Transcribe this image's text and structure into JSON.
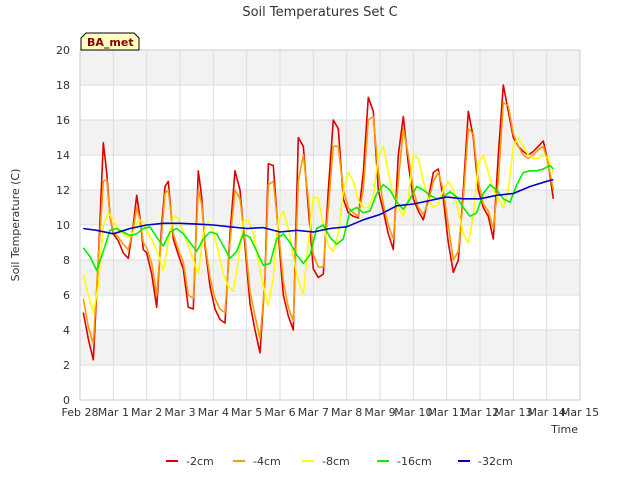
{
  "chart_data": {
    "type": "line",
    "title": "Soil Temperatures Set C",
    "xlabel": "Time",
    "ylabel": "Soil Temperature (C)",
    "ylim": [
      0,
      20
    ],
    "yticks": [
      0,
      2,
      4,
      6,
      8,
      10,
      12,
      14,
      16,
      18,
      20
    ],
    "xlim": [
      0,
      15
    ],
    "xtick_labels": [
      "Feb 28",
      "Mar 1",
      "Mar 2",
      "Mar 3",
      "Mar 4",
      "Mar 5",
      "Mar 6",
      "Mar 7",
      "Mar 8",
      "Mar 9",
      "Mar 10",
      "Mar 11",
      "Mar 12",
      "Mar 13",
      "Mar 14",
      "Mar 15"
    ],
    "grid": true,
    "legend_position": "bottom",
    "badge": "BA_met",
    "series": [
      {
        "name": "-2cm",
        "color": "#dd0000",
        "x": [
          0.1,
          0.25,
          0.4,
          0.55,
          0.7,
          0.8,
          0.9,
          1.0,
          1.15,
          1.3,
          1.45,
          1.6,
          1.7,
          1.8,
          1.9,
          2.0,
          2.15,
          2.3,
          2.45,
          2.55,
          2.65,
          2.8,
          2.95,
          3.1,
          3.25,
          3.4,
          3.55,
          3.65,
          3.75,
          3.9,
          4.05,
          4.2,
          4.35,
          4.5,
          4.65,
          4.8,
          4.95,
          5.1,
          5.25,
          5.4,
          5.55,
          5.65,
          5.8,
          5.95,
          6.1,
          6.25,
          6.4,
          6.55,
          6.7,
          6.85,
          7.0,
          7.15,
          7.3,
          7.45,
          7.6,
          7.75,
          7.9,
          8.05,
          8.2,
          8.35,
          8.5,
          8.65,
          8.8,
          8.95,
          9.1,
          9.25,
          9.4,
          9.55,
          9.7,
          9.85,
          10.0,
          10.15,
          10.3,
          10.45,
          10.6,
          10.75,
          10.9,
          11.05,
          11.2,
          11.35,
          11.5,
          11.65,
          11.8,
          11.95,
          12.1,
          12.25,
          12.4,
          12.55,
          12.7,
          12.85,
          13.0,
          13.15,
          13.3,
          13.45,
          13.6,
          13.75,
          13.9,
          14.05,
          14.2
        ],
        "y": [
          5.0,
          3.5,
          2.3,
          8.0,
          14.7,
          13.0,
          10.5,
          9.5,
          9.1,
          8.4,
          8.1,
          10.0,
          11.7,
          10.4,
          8.6,
          8.4,
          7.2,
          5.3,
          10.0,
          12.2,
          12.5,
          9.2,
          8.3,
          7.5,
          5.3,
          5.2,
          13.1,
          11.6,
          8.8,
          6.5,
          5.2,
          4.6,
          4.4,
          9.5,
          13.1,
          12.0,
          8.8,
          5.5,
          4.0,
          2.7,
          7.0,
          13.5,
          13.4,
          9.5,
          6.0,
          4.8,
          4.0,
          15.0,
          14.5,
          11.0,
          7.5,
          7.0,
          7.2,
          12.0,
          16.0,
          15.5,
          11.5,
          10.7,
          10.5,
          10.4,
          13.0,
          17.3,
          16.5,
          12.0,
          10.8,
          9.5,
          8.6,
          14.0,
          16.2,
          13.5,
          11.5,
          10.8,
          10.3,
          11.5,
          13.0,
          13.2,
          11.5,
          9.0,
          7.3,
          8.0,
          12.0,
          16.5,
          15.0,
          12.0,
          11.0,
          10.5,
          9.2,
          14.0,
          18.0,
          16.5,
          15.0,
          14.5,
          14.2,
          14.0,
          14.2,
          14.5,
          14.8,
          13.5,
          11.5
        ]
      },
      {
        "name": "-4cm",
        "color": "#ff9900",
        "x": [
          0.1,
          0.25,
          0.4,
          0.55,
          0.7,
          0.8,
          0.9,
          1.0,
          1.15,
          1.3,
          1.45,
          1.6,
          1.7,
          1.8,
          1.9,
          2.0,
          2.15,
          2.3,
          2.45,
          2.55,
          2.65,
          2.8,
          2.95,
          3.1,
          3.25,
          3.4,
          3.55,
          3.65,
          3.75,
          3.9,
          4.05,
          4.2,
          4.35,
          4.5,
          4.65,
          4.8,
          4.95,
          5.1,
          5.25,
          5.4,
          5.55,
          5.65,
          5.8,
          5.95,
          6.1,
          6.25,
          6.4,
          6.55,
          6.7,
          6.85,
          7.0,
          7.15,
          7.3,
          7.45,
          7.6,
          7.75,
          7.9,
          8.05,
          8.2,
          8.35,
          8.5,
          8.65,
          8.8,
          8.95,
          9.1,
          9.25,
          9.4,
          9.55,
          9.7,
          9.85,
          10.0,
          10.15,
          10.3,
          10.45,
          10.6,
          10.75,
          10.9,
          11.05,
          11.2,
          11.35,
          11.5,
          11.65,
          11.8,
          11.95,
          12.1,
          12.25,
          12.4,
          12.55,
          12.7,
          12.85,
          13.0,
          13.15,
          13.3,
          13.45,
          13.6,
          13.75,
          13.9,
          14.05,
          14.2
        ],
        "y": [
          5.8,
          4.2,
          3.2,
          8.0,
          12.5,
          12.6,
          10.5,
          9.6,
          9.3,
          8.9,
          8.6,
          9.8,
          11.0,
          10.3,
          9.0,
          8.7,
          7.8,
          6.0,
          9.5,
          11.8,
          12.0,
          9.5,
          8.6,
          7.9,
          6.0,
          5.8,
          12.0,
          11.2,
          9.0,
          7.0,
          5.8,
          5.2,
          5.0,
          9.0,
          12.0,
          11.5,
          9.2,
          6.2,
          4.8,
          3.5,
          6.8,
          12.3,
          12.5,
          9.8,
          6.8,
          5.3,
          4.5,
          12.5,
          14.0,
          11.5,
          8.3,
          7.6,
          7.6,
          11.0,
          14.5,
          14.5,
          12.0,
          11.0,
          10.7,
          10.5,
          12.0,
          16.0,
          16.2,
          13.0,
          11.2,
          10.0,
          9.2,
          12.5,
          15.5,
          14.0,
          12.0,
          11.0,
          10.6,
          11.3,
          12.5,
          13.0,
          12.0,
          10.0,
          8.0,
          8.5,
          11.5,
          15.5,
          15.2,
          12.5,
          11.2,
          10.8,
          9.8,
          12.5,
          17.0,
          16.8,
          15.2,
          14.5,
          14.0,
          13.8,
          14.0,
          14.3,
          14.5,
          13.5,
          12.0
        ]
      },
      {
        "name": "-8cm",
        "color": "#ffff00",
        "x": [
          0.1,
          0.25,
          0.4,
          0.55,
          0.7,
          0.85,
          1.0,
          1.15,
          1.3,
          1.45,
          1.6,
          1.75,
          1.9,
          2.05,
          2.2,
          2.35,
          2.5,
          2.65,
          2.8,
          2.95,
          3.1,
          3.25,
          3.4,
          3.55,
          3.7,
          3.85,
          4.0,
          4.15,
          4.3,
          4.45,
          4.6,
          4.75,
          4.9,
          5.05,
          5.2,
          5.35,
          5.5,
          5.65,
          5.8,
          5.95,
          6.1,
          6.25,
          6.4,
          6.55,
          6.7,
          6.85,
          7.0,
          7.15,
          7.3,
          7.45,
          7.6,
          7.75,
          7.9,
          8.05,
          8.2,
          8.35,
          8.5,
          8.65,
          8.8,
          8.95,
          9.1,
          9.25,
          9.4,
          9.55,
          9.7,
          9.85,
          10.0,
          10.15,
          10.3,
          10.45,
          10.6,
          10.75,
          10.9,
          11.05,
          11.2,
          11.35,
          11.5,
          11.65,
          11.8,
          11.95,
          12.1,
          12.25,
          12.4,
          12.55,
          12.7,
          12.85,
          13.0,
          13.15,
          13.3,
          13.45,
          13.6,
          13.75,
          13.9,
          14.05,
          14.2
        ],
        "y": [
          7.2,
          6.0,
          5.0,
          6.5,
          10.0,
          10.7,
          10.3,
          9.7,
          9.5,
          9.3,
          9.6,
          10.3,
          10.2,
          9.5,
          9.0,
          8.3,
          7.4,
          9.0,
          10.5,
          10.4,
          9.6,
          8.8,
          8.0,
          7.2,
          9.5,
          10.2,
          9.6,
          8.5,
          7.2,
          6.5,
          6.2,
          8.0,
          10.2,
          10.3,
          9.5,
          8.0,
          6.5,
          5.4,
          7.0,
          10.3,
          10.8,
          9.8,
          8.2,
          6.8,
          6.0,
          9.0,
          11.6,
          11.5,
          10.0,
          8.8,
          8.5,
          9.5,
          12.0,
          13.0,
          12.5,
          11.4,
          11.0,
          11.0,
          11.6,
          14.0,
          14.5,
          13.0,
          11.8,
          11.0,
          10.5,
          11.5,
          14.0,
          13.8,
          12.5,
          11.5,
          11.0,
          11.2,
          12.0,
          12.5,
          12.0,
          10.8,
          9.5,
          9.0,
          10.5,
          13.5,
          14.0,
          13.0,
          12.0,
          11.5,
          11.0,
          12.0,
          14.5,
          15.0,
          14.5,
          14.0,
          13.8,
          13.8,
          14.0,
          13.8,
          13.0
        ]
      },
      {
        "name": "-16cm",
        "color": "#00ee00",
        "x": [
          0.1,
          0.3,
          0.5,
          0.7,
          0.9,
          1.1,
          1.3,
          1.5,
          1.7,
          1.9,
          2.1,
          2.3,
          2.5,
          2.7,
          2.9,
          3.1,
          3.3,
          3.5,
          3.7,
          3.9,
          4.1,
          4.3,
          4.5,
          4.7,
          4.9,
          5.1,
          5.3,
          5.5,
          5.7,
          5.9,
          6.1,
          6.3,
          6.5,
          6.7,
          6.9,
          7.1,
          7.3,
          7.5,
          7.7,
          7.9,
          8.1,
          8.3,
          8.5,
          8.7,
          8.9,
          9.1,
          9.3,
          9.5,
          9.7,
          9.9,
          10.1,
          10.3,
          10.5,
          10.7,
          10.9,
          11.1,
          11.3,
          11.5,
          11.7,
          11.9,
          12.1,
          12.3,
          12.5,
          12.7,
          12.9,
          13.1,
          13.3,
          13.5,
          13.7,
          13.9,
          14.1,
          14.2
        ],
        "y": [
          8.7,
          8.2,
          7.4,
          8.5,
          9.7,
          9.8,
          9.6,
          9.4,
          9.5,
          9.8,
          9.9,
          9.3,
          8.8,
          9.6,
          9.8,
          9.5,
          9.0,
          8.5,
          9.2,
          9.6,
          9.5,
          8.8,
          8.1,
          8.5,
          9.5,
          9.3,
          8.5,
          7.7,
          7.8,
          9.2,
          9.5,
          9.0,
          8.3,
          7.8,
          8.3,
          9.8,
          10.0,
          9.3,
          8.9,
          9.2,
          10.8,
          11.0,
          10.7,
          10.8,
          11.8,
          12.3,
          12.0,
          11.3,
          10.9,
          11.5,
          12.2,
          12.0,
          11.7,
          11.5,
          11.6,
          11.9,
          11.6,
          11.0,
          10.5,
          10.7,
          11.8,
          12.3,
          12.0,
          11.5,
          11.3,
          12.3,
          13.0,
          13.1,
          13.1,
          13.2,
          13.4,
          13.2
        ]
      },
      {
        "name": "-32cm",
        "color": "#0000cc",
        "x": [
          0.1,
          0.5,
          1.0,
          1.5,
          2.0,
          2.5,
          3.0,
          3.5,
          4.0,
          4.5,
          5.0,
          5.5,
          6.0,
          6.5,
          7.0,
          7.5,
          8.0,
          8.5,
          9.0,
          9.5,
          10.0,
          10.5,
          11.0,
          11.5,
          12.0,
          12.5,
          13.0,
          13.5,
          14.0,
          14.2
        ],
        "y": [
          9.8,
          9.7,
          9.5,
          9.8,
          10.0,
          10.1,
          10.1,
          10.05,
          10.0,
          9.9,
          9.8,
          9.85,
          9.6,
          9.7,
          9.6,
          9.8,
          9.9,
          10.3,
          10.6,
          11.1,
          11.2,
          11.4,
          11.6,
          11.5,
          11.5,
          11.7,
          11.8,
          12.2,
          12.5,
          12.6
        ]
      }
    ]
  }
}
